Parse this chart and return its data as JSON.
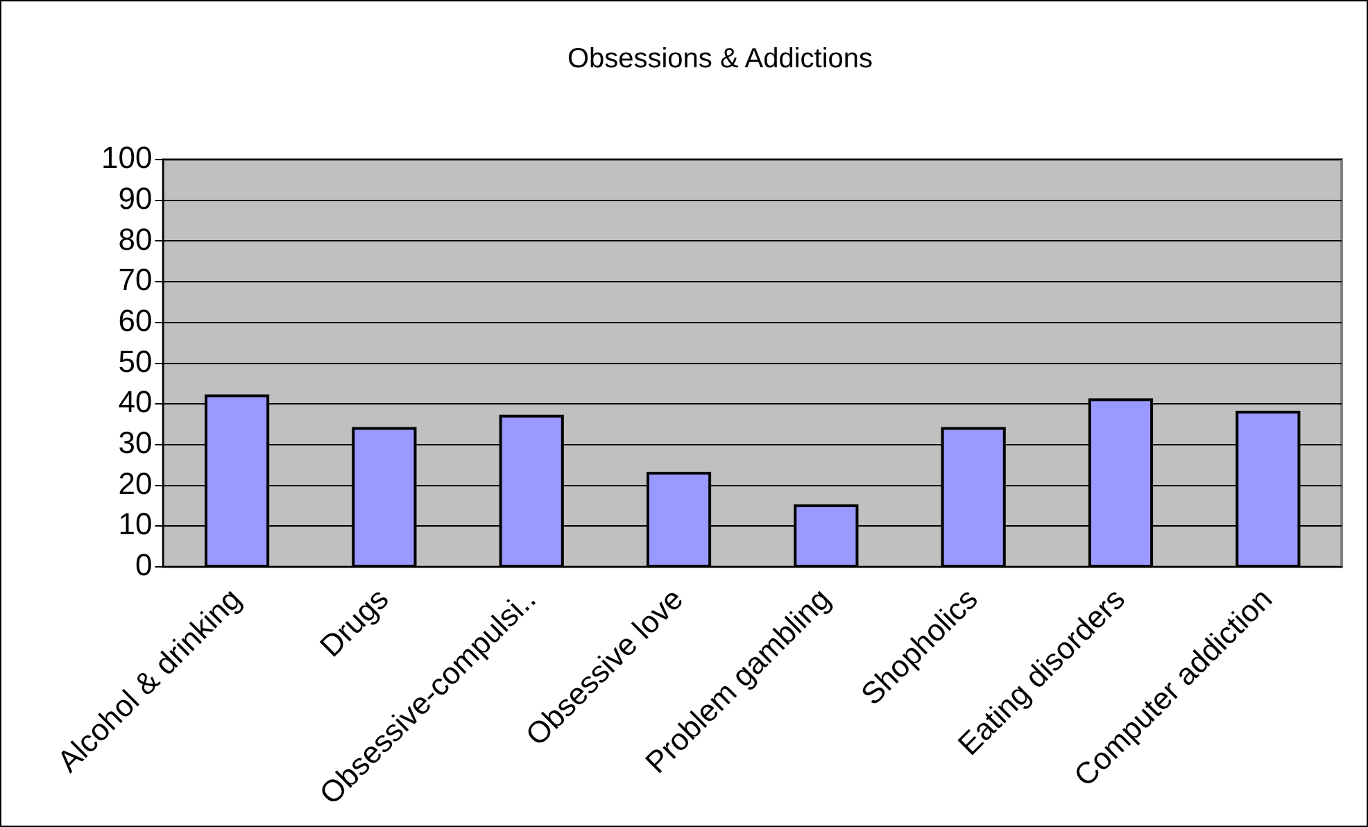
{
  "chart_data": {
    "type": "bar",
    "title": "Obsessions & Addictions",
    "categories": [
      "Alcohol & drinking",
      "Drugs",
      "Obsessive-compulsi..",
      "Obsessive love",
      "Problem gambling",
      "Shopholics",
      "Eating disorders",
      "Computer addiction"
    ],
    "values": [
      42,
      34,
      37,
      23,
      15,
      34,
      41,
      38
    ],
    "color": "#9999ff",
    "ylim": [
      0,
      100
    ],
    "yticks": [
      0,
      10,
      20,
      30,
      40,
      50,
      60,
      70,
      80,
      90,
      100
    ],
    "grid": "y",
    "legend": false
  }
}
